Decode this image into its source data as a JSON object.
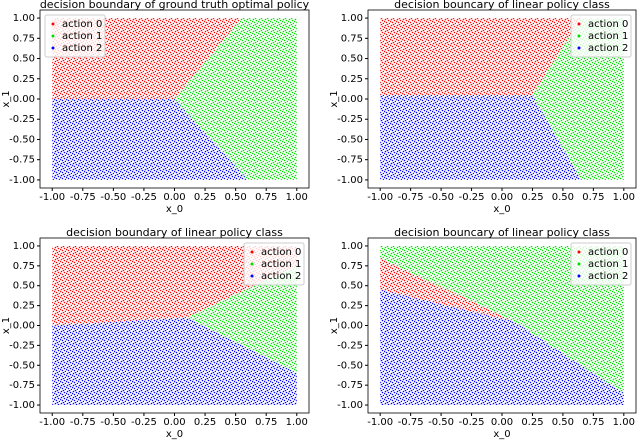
{
  "chart_data": [
    {
      "type": "area",
      "title": "decision boundary of ground truth optimal policy",
      "xlabel": "x_0",
      "ylabel": "x_1",
      "xlim": [
        -1.1,
        1.1
      ],
      "ylim": [
        -1.1,
        1.1
      ],
      "xticks": [
        {
          "value": -1,
          "label": "-1.00"
        },
        {
          "value": -0.75,
          "label": "-0.75"
        },
        {
          "value": -0.5,
          "label": "-0.50"
        },
        {
          "value": -0.25,
          "label": "-0.25"
        },
        {
          "value": 0,
          "label": "0.00"
        },
        {
          "value": 0.25,
          "label": "0.25"
        },
        {
          "value": 0.5,
          "label": "0.50"
        },
        {
          "value": 0.75,
          "label": "0.75"
        },
        {
          "value": 1,
          "label": "1.00"
        }
      ],
      "yticks": [
        {
          "value": -1,
          "label": "-1.00"
        },
        {
          "value": -0.75,
          "label": "-0.75"
        },
        {
          "value": -0.5,
          "label": "-0.50"
        },
        {
          "value": -0.25,
          "label": "-0.25"
        },
        {
          "value": 0,
          "label": "0.00"
        },
        {
          "value": 0.25,
          "label": "0.25"
        },
        {
          "value": 0.5,
          "label": "0.50"
        },
        {
          "value": 0.75,
          "label": "0.75"
        },
        {
          "value": 1,
          "label": "1.00"
        }
      ],
      "legend": "upper left",
      "series": [
        {
          "name": "action 0",
          "color": "#ff0000",
          "x": [
            -1,
            0,
            0.55,
            -1
          ],
          "y": [
            0,
            0,
            1,
            1
          ]
        },
        {
          "name": "action 1",
          "color": "#00dd00",
          "x": [
            0,
            0.55,
            1,
            1,
            0.6
          ],
          "y": [
            0,
            1,
            1,
            -1,
            -1
          ]
        },
        {
          "name": "action 2",
          "color": "#0000ff",
          "x": [
            -1,
            0,
            0.6,
            -1
          ],
          "y": [
            0,
            0,
            -1,
            -1
          ]
        }
      ]
    },
    {
      "type": "area",
      "title": "decision bouncary of linear policy class",
      "xlabel": "x_0",
      "ylabel": "x_1",
      "xlim": [
        -1.1,
        1.1
      ],
      "ylim": [
        -1.1,
        1.1
      ],
      "xticks": [
        {
          "value": -1,
          "label": "-1.00"
        },
        {
          "value": -0.75,
          "label": "-0.75"
        },
        {
          "value": -0.5,
          "label": "-0.50"
        },
        {
          "value": -0.25,
          "label": "-0.25"
        },
        {
          "value": 0,
          "label": "0.00"
        },
        {
          "value": 0.25,
          "label": "0.25"
        },
        {
          "value": 0.5,
          "label": "0.50"
        },
        {
          "value": 0.75,
          "label": "0.75"
        },
        {
          "value": 1,
          "label": "1.00"
        }
      ],
      "yticks": [
        {
          "value": -1,
          "label": "-1.00"
        },
        {
          "value": -0.75,
          "label": "-0.75"
        },
        {
          "value": -0.5,
          "label": "-0.50"
        },
        {
          "value": -0.25,
          "label": "-0.25"
        },
        {
          "value": 0,
          "label": "0.00"
        },
        {
          "value": 0.25,
          "label": "0.25"
        },
        {
          "value": 0.5,
          "label": "0.50"
        },
        {
          "value": 0.75,
          "label": "0.75"
        },
        {
          "value": 1,
          "label": "1.00"
        }
      ],
      "legend": "upper right",
      "series": [
        {
          "name": "action 0",
          "color": "#ff0000",
          "x": [
            -1,
            0.65,
            0.25,
            -1
          ],
          "y": [
            1,
            1,
            0.05,
            0.05
          ]
        },
        {
          "name": "action 1",
          "color": "#00dd00",
          "x": [
            0.65,
            1,
            1,
            0.65,
            0.25
          ],
          "y": [
            1,
            1,
            -1,
            -1,
            0.05
          ]
        },
        {
          "name": "action 2",
          "color": "#0000ff",
          "x": [
            -1,
            0.25,
            0.65,
            -1
          ],
          "y": [
            0.05,
            0.05,
            -1,
            -1
          ]
        }
      ]
    },
    {
      "type": "area",
      "title": "decision boundary of linear policy class",
      "xlabel": "x_0",
      "ylabel": "x_1",
      "xlim": [
        -1.1,
        1.1
      ],
      "ylim": [
        -1.1,
        1.1
      ],
      "xticks": [
        {
          "value": -1,
          "label": "-1.00"
        },
        {
          "value": -0.75,
          "label": "-0.75"
        },
        {
          "value": -0.5,
          "label": "-0.50"
        },
        {
          "value": -0.25,
          "label": "-0.25"
        },
        {
          "value": 0,
          "label": "0.00"
        },
        {
          "value": 0.25,
          "label": "0.25"
        },
        {
          "value": 0.5,
          "label": "0.50"
        },
        {
          "value": 0.75,
          "label": "0.75"
        },
        {
          "value": 1,
          "label": "1.00"
        }
      ],
      "yticks": [
        {
          "value": -1,
          "label": "-1.00"
        },
        {
          "value": -0.75,
          "label": "-0.75"
        },
        {
          "value": -0.5,
          "label": "-0.50"
        },
        {
          "value": -0.25,
          "label": "-0.25"
        },
        {
          "value": 0,
          "label": "0.00"
        },
        {
          "value": 0.25,
          "label": "0.25"
        },
        {
          "value": 0.5,
          "label": "0.50"
        },
        {
          "value": 0.75,
          "label": "0.75"
        },
        {
          "value": 1,
          "label": "1.00"
        }
      ],
      "legend": "upper right",
      "series": [
        {
          "name": "action 0",
          "color": "#ff0000",
          "x": [
            -1,
            1,
            1,
            0.1,
            -1
          ],
          "y": [
            1,
            1,
            0.75,
            0.1,
            0
          ]
        },
        {
          "name": "action 1",
          "color": "#00dd00",
          "x": [
            0.1,
            1,
            1
          ],
          "y": [
            0.1,
            0.75,
            -0.6
          ]
        },
        {
          "name": "action 2",
          "color": "#0000ff",
          "x": [
            -1,
            0.1,
            1,
            1,
            -1
          ],
          "y": [
            0,
            0.1,
            -0.6,
            -1,
            -1
          ]
        }
      ]
    },
    {
      "type": "area",
      "title": "decision bouncary of linear policy class",
      "xlabel": "x_0",
      "ylabel": "x_1",
      "xlim": [
        -1.1,
        1.1
      ],
      "ylim": [
        -1.1,
        1.1
      ],
      "xticks": [
        {
          "value": -1,
          "label": "-1.00"
        },
        {
          "value": -0.75,
          "label": "-0.75"
        },
        {
          "value": -0.5,
          "label": "-0.50"
        },
        {
          "value": -0.25,
          "label": "-0.25"
        },
        {
          "value": 0,
          "label": "0.00"
        },
        {
          "value": 0.25,
          "label": "0.25"
        },
        {
          "value": 0.5,
          "label": "0.50"
        },
        {
          "value": 0.75,
          "label": "0.75"
        },
        {
          "value": 1,
          "label": "1.00"
        }
      ],
      "yticks": [
        {
          "value": -1,
          "label": "-1.00"
        },
        {
          "value": -0.75,
          "label": "-0.75"
        },
        {
          "value": -0.5,
          "label": "-0.50"
        },
        {
          "value": -0.25,
          "label": "-0.25"
        },
        {
          "value": 0,
          "label": "0.00"
        },
        {
          "value": 0.25,
          "label": "0.25"
        },
        {
          "value": 0.5,
          "label": "0.50"
        },
        {
          "value": 0.75,
          "label": "0.75"
        },
        {
          "value": 1,
          "label": "1.00"
        }
      ],
      "legend": "upper right",
      "series": [
        {
          "name": "action 0",
          "color": "#ff0000",
          "x": [
            -1,
            0.1,
            -1
          ],
          "y": [
            0.85,
            0.05,
            0.45
          ]
        },
        {
          "name": "action 1",
          "color": "#00dd00",
          "x": [
            -1,
            -1,
            1,
            1,
            0.1
          ],
          "y": [
            0.85,
            1,
            1,
            -0.85,
            0.05
          ]
        },
        {
          "name": "action 2",
          "color": "#0000ff",
          "x": [
            -1,
            0.1,
            1,
            1,
            -1
          ],
          "y": [
            0.45,
            0.05,
            -0.85,
            -1,
            -1
          ]
        }
      ]
    }
  ]
}
